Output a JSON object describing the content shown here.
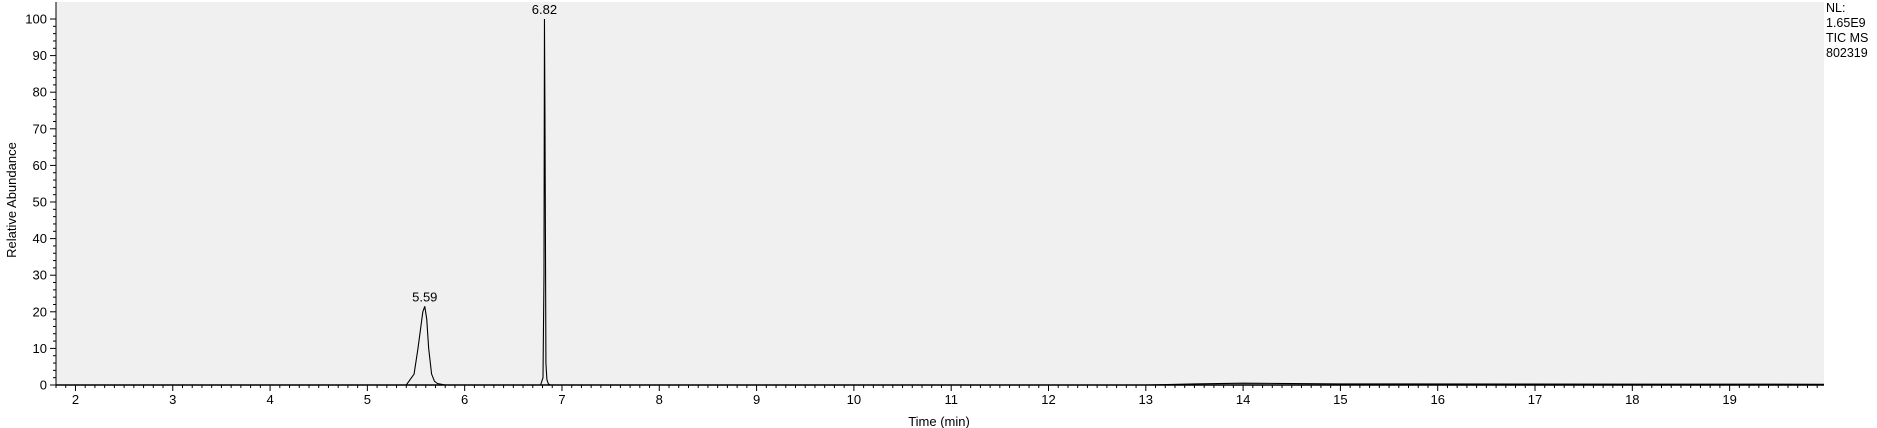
{
  "chart_data": {
    "type": "line",
    "xlabel": "Time (min)",
    "ylabel": "Relative Abundance",
    "xlim": [
      1.8,
      19.97
    ],
    "ylim": [
      0,
      100
    ],
    "x_ticks": [
      2,
      3,
      4,
      5,
      6,
      7,
      8,
      9,
      10,
      11,
      12,
      13,
      14,
      15,
      16,
      17,
      18,
      19
    ],
    "y_ticks": [
      0,
      10,
      20,
      30,
      40,
      50,
      60,
      70,
      80,
      90,
      100
    ],
    "grid": false,
    "series": [
      {
        "x": [
          1.8,
          5.4,
          5.48,
          5.52,
          5.55,
          5.57,
          5.59,
          5.61,
          5.63,
          5.66,
          5.69,
          5.72,
          5.8,
          6.78,
          6.805,
          6.815,
          6.82,
          6.825,
          6.835,
          6.845,
          6.86,
          6.88,
          13.0,
          13.5,
          14.0,
          14.5,
          15.0,
          19.97
        ],
        "y": [
          0,
          0,
          3,
          10,
          16,
          20,
          21.5,
          18,
          10,
          3,
          1,
          0.4,
          0,
          0,
          2,
          30,
          100,
          74,
          6,
          1.5,
          0.3,
          0,
          0,
          0.3,
          0.5,
          0.4,
          0.3,
          0.2
        ]
      }
    ],
    "annotations": [
      {
        "text": "5.59",
        "x": 5.59,
        "y": 21.5
      },
      {
        "text": "6.82",
        "x": 6.82,
        "y": 100
      }
    ]
  },
  "info": {
    "nl_label": "NL:",
    "nl_value": "1.65E9",
    "trace": "TIC  MS",
    "sample": "802319"
  }
}
